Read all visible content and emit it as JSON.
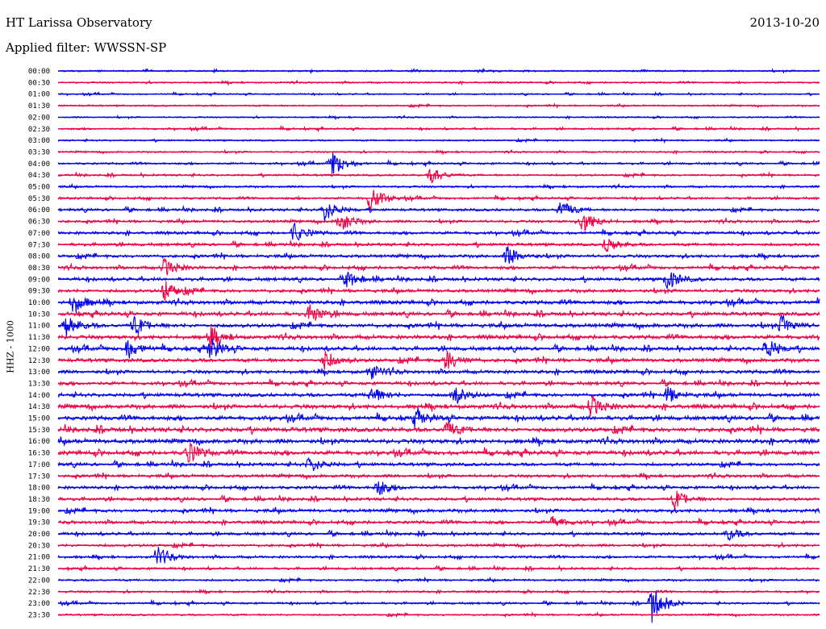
{
  "header": {
    "title": "HT Larissa Observatory",
    "date": "2013-10-20",
    "filter": "Applied filter: WWSSN-SP"
  },
  "chart_data": {
    "type": "line",
    "ylabel": "HHZ - 1000",
    "rows": [
      "00:00",
      "00:30",
      "01:00",
      "01:30",
      "02:00",
      "02:30",
      "03:00",
      "03:30",
      "04:00",
      "04:30",
      "05:00",
      "05:30",
      "06:00",
      "06:30",
      "07:00",
      "07:30",
      "08:00",
      "08:30",
      "09:00",
      "09:30",
      "10:00",
      "10:30",
      "11:00",
      "11:30",
      "12:00",
      "12:30",
      "13:00",
      "13:30",
      "14:00",
      "14:30",
      "15:00",
      "15:30",
      "16:00",
      "16:30",
      "17:00",
      "17:30",
      "18:00",
      "18:30",
      "19:00",
      "19:30",
      "20:00",
      "20:30",
      "21:00",
      "21:30",
      "22:00",
      "22:30",
      "23:00",
      "23:30"
    ],
    "series_colors": [
      "#0000ee",
      "#ee0044"
    ],
    "noise_levels": [
      0.8,
      0.8,
      0.7,
      0.8,
      0.7,
      0.9,
      0.8,
      0.8,
      1.0,
      1.0,
      1.0,
      1.1,
      1.3,
      1.3,
      1.4,
      1.4,
      1.5,
      1.5,
      1.6,
      1.6,
      1.8,
      1.8,
      1.9,
      1.9,
      1.8,
      1.8,
      1.7,
      1.6,
      1.8,
      2.0,
      2.0,
      2.2,
      2.1,
      2.0,
      1.6,
      1.5,
      1.5,
      1.5,
      1.6,
      1.5,
      1.4,
      1.3,
      1.2,
      1.1,
      1.0,
      1.0,
      1.0,
      0.9
    ],
    "events": [
      {
        "row": 8,
        "x": 0.36,
        "amp": 18
      },
      {
        "row": 9,
        "x": 0.49,
        "amp": 10
      },
      {
        "row": 11,
        "x": 0.41,
        "amp": 16
      },
      {
        "row": 12,
        "x": 0.35,
        "amp": 14
      },
      {
        "row": 12,
        "x": 0.66,
        "amp": 12
      },
      {
        "row": 13,
        "x": 0.37,
        "amp": 14
      },
      {
        "row": 13,
        "x": 0.69,
        "amp": 16
      },
      {
        "row": 14,
        "x": 0.31,
        "amp": 12
      },
      {
        "row": 15,
        "x": 0.72,
        "amp": 10
      },
      {
        "row": 16,
        "x": 0.59,
        "amp": 12
      },
      {
        "row": 17,
        "x": 0.14,
        "amp": 12
      },
      {
        "row": 18,
        "x": 0.38,
        "amp": 10
      },
      {
        "row": 18,
        "x": 0.8,
        "amp": 14
      },
      {
        "row": 19,
        "x": 0.14,
        "amp": 14
      },
      {
        "row": 20,
        "x": 0.02,
        "amp": 14
      },
      {
        "row": 21,
        "x": 0.33,
        "amp": 14
      },
      {
        "row": 22,
        "x": 0.01,
        "amp": 14
      },
      {
        "row": 22,
        "x": 0.1,
        "amp": 12
      },
      {
        "row": 22,
        "x": 0.95,
        "amp": 12
      },
      {
        "row": 23,
        "x": 0.2,
        "amp": 12
      },
      {
        "row": 24,
        "x": 0.09,
        "amp": 14
      },
      {
        "row": 24,
        "x": 0.2,
        "amp": 14
      },
      {
        "row": 24,
        "x": 0.93,
        "amp": 14
      },
      {
        "row": 25,
        "x": 0.35,
        "amp": 12
      },
      {
        "row": 25,
        "x": 0.51,
        "amp": 14
      },
      {
        "row": 26,
        "x": 0.41,
        "amp": 10
      },
      {
        "row": 28,
        "x": 0.41,
        "amp": 12
      },
      {
        "row": 28,
        "x": 0.52,
        "amp": 12
      },
      {
        "row": 28,
        "x": 0.8,
        "amp": 10
      },
      {
        "row": 29,
        "x": 0.7,
        "amp": 14
      },
      {
        "row": 30,
        "x": 0.47,
        "amp": 10
      },
      {
        "row": 31,
        "x": 0.51,
        "amp": 10
      },
      {
        "row": 33,
        "x": 0.17,
        "amp": 14
      },
      {
        "row": 34,
        "x": 0.33,
        "amp": 10
      },
      {
        "row": 36,
        "x": 0.42,
        "amp": 10
      },
      {
        "row": 37,
        "x": 0.81,
        "amp": 12
      },
      {
        "row": 39,
        "x": 0.65,
        "amp": 8
      },
      {
        "row": 40,
        "x": 0.88,
        "amp": 8
      },
      {
        "row": 42,
        "x": 0.13,
        "amp": 14
      },
      {
        "row": 46,
        "x": 0.78,
        "amp": 24
      }
    ]
  }
}
